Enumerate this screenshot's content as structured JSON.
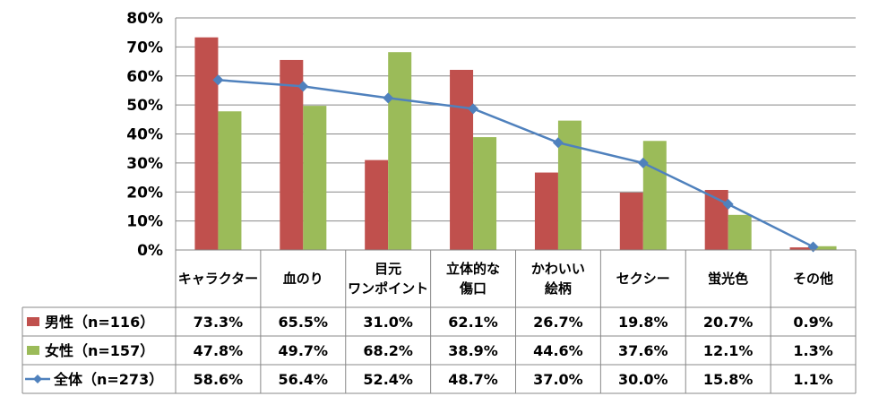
{
  "chart_data": {
    "type": "bar",
    "categories": [
      "キャラクター",
      "血のり",
      "目元\nワンポイント",
      "立体的な\n傷口",
      "かわいい\n絵柄",
      "セクシー",
      "蛍光色",
      "その他"
    ],
    "series": [
      {
        "name": "男性（n=116）",
        "type": "bar",
        "color": "#C0504D",
        "values": [
          73.3,
          65.5,
          31.0,
          62.1,
          26.7,
          19.8,
          20.7,
          0.9
        ],
        "labels": [
          "73.3%",
          "65.5%",
          "31.0%",
          "62.1%",
          "26.7%",
          "19.8%",
          "20.7%",
          "0.9%"
        ]
      },
      {
        "name": "女性（n=157）",
        "type": "bar",
        "color": "#9BBB59",
        "values": [
          47.8,
          49.7,
          68.2,
          38.9,
          44.6,
          37.6,
          12.1,
          1.3
        ],
        "labels": [
          "47.8%",
          "49.7%",
          "68.2%",
          "38.9%",
          "44.6%",
          "37.6%",
          "12.1%",
          "1.3%"
        ]
      },
      {
        "name": "全体（n=273）",
        "type": "line",
        "color": "#4F81BD",
        "values": [
          58.6,
          56.4,
          52.4,
          48.7,
          37.0,
          30.0,
          15.8,
          1.1
        ],
        "labels": [
          "58.6%",
          "56.4%",
          "52.4%",
          "48.7%",
          "37.0%",
          "30.0%",
          "15.8%",
          "1.1%"
        ]
      }
    ],
    "yticks": [
      "0%",
      "10%",
      "20%",
      "30%",
      "40%",
      "50%",
      "60%",
      "70%",
      "80%"
    ],
    "ylim": [
      0,
      80
    ],
    "grid": true,
    "legend": "data-table-left"
  }
}
